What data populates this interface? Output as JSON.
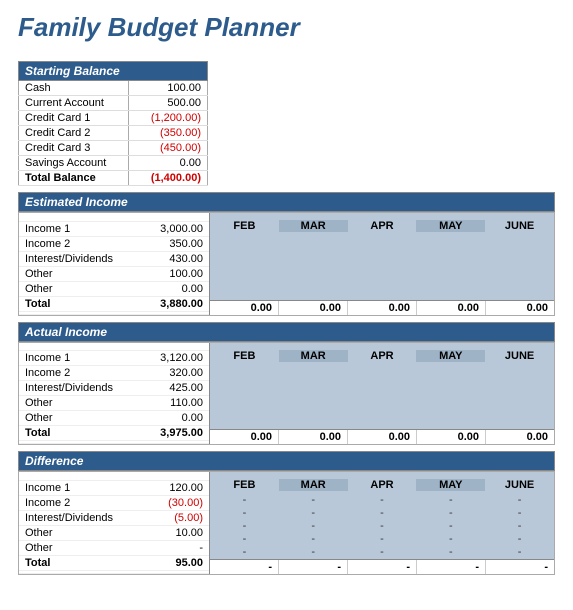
{
  "title": "Family Budget Planner",
  "colors": {
    "header_bg": "#2c5b8c",
    "header_fg": "#ffffff",
    "neg": "#d00000",
    "shade": "#b9c8d8",
    "shade_alt": "#9fb3c7"
  },
  "starting": {
    "header": "Starting Balance",
    "rows": [
      {
        "label": "Cash",
        "value": "100.00",
        "neg": false
      },
      {
        "label": "Current Account",
        "value": "500.00",
        "neg": false
      },
      {
        "label": "Credit Card 1",
        "value": "(1,200.00)",
        "neg": true
      },
      {
        "label": "Credit Card 2",
        "value": "(350.00)",
        "neg": true
      },
      {
        "label": "Credit Card 3",
        "value": "(450.00)",
        "neg": true
      },
      {
        "label": "Savings Account",
        "value": "0.00",
        "neg": false
      }
    ],
    "total_label": "Total Balance",
    "total_value": "(1,400.00)"
  },
  "months": [
    "FEB",
    "MAR",
    "APR",
    "MAY",
    "JUNE"
  ],
  "estimated": {
    "header": "Estimated Income",
    "rows": [
      {
        "label": "Income 1",
        "value": "3,000.00"
      },
      {
        "label": "Income 2",
        "value": "350.00"
      },
      {
        "label": "Interest/Dividends",
        "value": "430.00"
      },
      {
        "label": "Other",
        "value": "100.00"
      },
      {
        "label": "Other",
        "value": "0.00"
      }
    ],
    "total_label": "Total",
    "total_value": "3,880.00",
    "month_totals": [
      "0.00",
      "0.00",
      "0.00",
      "0.00",
      "0.00"
    ]
  },
  "actual": {
    "header": "Actual Income",
    "rows": [
      {
        "label": "Income 1",
        "value": "3,120.00"
      },
      {
        "label": "Income 2",
        "value": "320.00"
      },
      {
        "label": "Interest/Dividends",
        "value": "425.00"
      },
      {
        "label": "Other",
        "value": "110.00"
      },
      {
        "label": "Other",
        "value": "0.00"
      }
    ],
    "total_label": "Total",
    "total_value": "3,975.00",
    "month_totals": [
      "0.00",
      "0.00",
      "0.00",
      "0.00",
      "0.00"
    ]
  },
  "difference": {
    "header": "Difference",
    "rows": [
      {
        "label": "Income 1",
        "value": "120.00",
        "neg": false
      },
      {
        "label": "Income 2",
        "value": "(30.00)",
        "neg": true
      },
      {
        "label": "Interest/Dividends",
        "value": "(5.00)",
        "neg": true
      },
      {
        "label": "Other",
        "value": "10.00",
        "neg": false
      },
      {
        "label": "Other",
        "value": "-",
        "neg": false
      }
    ],
    "total_label": "Total",
    "total_value": "95.00",
    "month_totals": [
      "-",
      "-",
      "-",
      "-",
      "-"
    ],
    "dash": "-"
  }
}
